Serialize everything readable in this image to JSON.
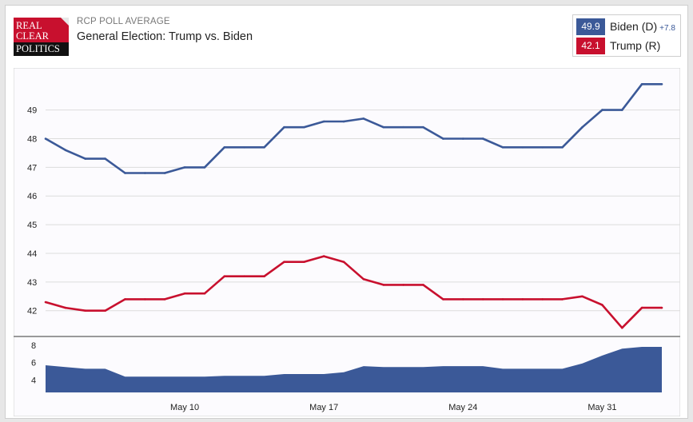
{
  "header": {
    "logo_lines": [
      "REAL",
      "CLEAR",
      "POLITICS"
    ],
    "supertitle": "RCP POLL AVERAGE",
    "title": "General Election: Trump vs. Biden"
  },
  "legend": {
    "biden": {
      "value": "49.9",
      "name": "Biden (D)",
      "spread": "+7.8",
      "color": "#3b5998"
    },
    "trump": {
      "value": "42.1",
      "name": "Trump (R)",
      "color": "#c8102e"
    }
  },
  "chart_data": {
    "type": "line",
    "x": [
      "May 3",
      "May 4",
      "May 5",
      "May 6",
      "May 7",
      "May 8",
      "May 9",
      "May 10",
      "May 11",
      "May 12",
      "May 13",
      "May 14",
      "May 15",
      "May 16",
      "May 17",
      "May 18",
      "May 19",
      "May 20",
      "May 21",
      "May 22",
      "May 23",
      "May 24",
      "May 25",
      "May 26",
      "May 27",
      "May 28",
      "May 29",
      "May 30",
      "May 31",
      "Jun 1",
      "Jun 2",
      "Jun 3"
    ],
    "series": [
      {
        "name": "Biden (D)",
        "color": "#3b5998",
        "values": [
          48.0,
          47.6,
          47.3,
          47.3,
          46.8,
          46.8,
          46.8,
          47.0,
          47.0,
          47.7,
          47.7,
          47.7,
          48.4,
          48.4,
          48.6,
          48.6,
          48.7,
          48.4,
          48.4,
          48.4,
          48.0,
          48.0,
          48.0,
          47.7,
          47.7,
          47.7,
          47.7,
          48.4,
          49.0,
          49.0,
          49.9,
          49.9
        ]
      },
      {
        "name": "Trump (R)",
        "color": "#c8102e",
        "values": [
          42.3,
          42.1,
          42.0,
          42.0,
          42.4,
          42.4,
          42.4,
          42.6,
          42.6,
          43.2,
          43.2,
          43.2,
          43.7,
          43.7,
          43.9,
          43.7,
          43.1,
          42.9,
          42.9,
          42.9,
          42.4,
          42.4,
          42.4,
          42.4,
          42.4,
          42.4,
          42.4,
          42.5,
          42.2,
          41.4,
          42.1,
          42.1
        ]
      }
    ],
    "spread": {
      "values": [
        5.7,
        5.5,
        5.3,
        5.3,
        4.4,
        4.4,
        4.4,
        4.4,
        4.4,
        4.5,
        4.5,
        4.5,
        4.7,
        4.7,
        4.7,
        4.9,
        5.6,
        5.5,
        5.5,
        5.5,
        5.6,
        5.6,
        5.6,
        5.3,
        5.3,
        5.3,
        5.3,
        5.9,
        6.8,
        7.6,
        7.8,
        7.8
      ],
      "color": "#3b5998"
    },
    "x_ticks": [
      {
        "label": "May 10",
        "index": 7
      },
      {
        "label": "May 17",
        "index": 14
      },
      {
        "label": "May 24",
        "index": 21
      },
      {
        "label": "May 31",
        "index": 28
      }
    ],
    "y_ticks": [
      42,
      43,
      44,
      45,
      46,
      47,
      48,
      49
    ],
    "ylim": [
      41.1,
      50.3
    ],
    "spread_ticks": [
      4,
      6,
      8
    ],
    "spread_ylim": [
      2.6,
      8.8
    ],
    "grid": true
  }
}
